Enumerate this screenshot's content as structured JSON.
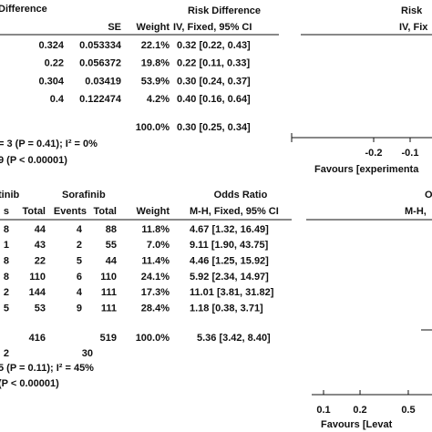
{
  "top_table": {
    "headers": [
      "Difference",
      "SE",
      "Weight",
      "Risk Difference",
      "Risk"
    ],
    "subheaders": [
      "IV, Fixed, 95% CI",
      "IV, Fix"
    ],
    "rows": [
      [
        "0.324",
        "0.053334",
        "22.1%",
        "0.32 [0.22, 0.43]"
      ],
      [
        "0.22",
        "0.056372",
        "19.8%",
        "0.22 [0.11, 0.33]"
      ],
      [
        "0.304",
        "0.03419",
        "53.9%",
        "0.30 [0.24, 0.37]"
      ],
      [
        "0.4",
        "0.122474",
        "4.2%",
        "0.40 [0.16, 0.64]"
      ]
    ],
    "total": [
      "100.0%",
      "0.30 [0.25, 0.34]"
    ],
    "heterogeneity": "= 3 (P = 0.41); I² = 0%",
    "overall_effect": "9 (P < 0.00001)",
    "axis": {
      "ticks": [
        -0.2,
        -0.1
      ],
      "favours": "Favours [experimenta"
    }
  },
  "bottom_table": {
    "headers": [
      "tinib",
      "Sorafinib",
      "Odds Ratio",
      "O"
    ],
    "subheaders": [
      "s",
      "Total",
      "Events",
      "Total",
      "Weight",
      "M-H, Fixed, 95% CI",
      "M-H,"
    ],
    "rows": [
      [
        "8",
        "44",
        "4",
        "88",
        "11.8%",
        "4.67 [1.32, 16.49]"
      ],
      [
        "1",
        "43",
        "2",
        "55",
        "7.0%",
        "9.11 [1.90, 43.75]"
      ],
      [
        "8",
        "22",
        "5",
        "44",
        "11.4%",
        "4.46 [1.25, 15.92]"
      ],
      [
        "8",
        "110",
        "6",
        "110",
        "24.1%",
        "5.92 [2.34, 14.97]"
      ],
      [
        "2",
        "144",
        "4",
        "111",
        "17.3%",
        "11.01 [3.81, 31.82]"
      ],
      [
        "5",
        "53",
        "9",
        "111",
        "28.4%",
        "1.18 [0.38, 3.71]"
      ]
    ],
    "total": [
      "416",
      "519",
      "100.0%",
      "5.36 [3.42, 8.40]"
    ],
    "total_events": [
      "2",
      "30"
    ],
    "heterogeneity": "5 (P = 0.11); I² = 45%",
    "overall_effect": "(P < 0.00001)",
    "axis": {
      "ticks": [
        0.1,
        0.2,
        0.5
      ],
      "favours": "Favours [Levat"
    }
  }
}
